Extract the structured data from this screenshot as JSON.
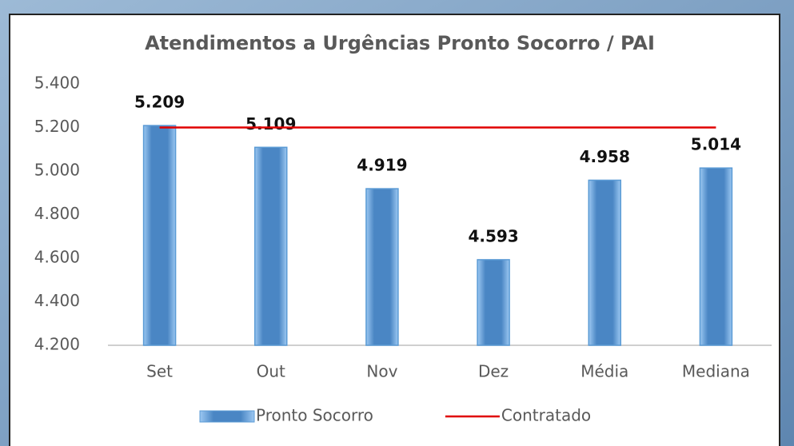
{
  "chart_data": {
    "type": "bar",
    "title": "Atendimentos a Urgências Pronto Socorro / PAI",
    "categories": [
      "Set",
      "Out",
      "Nov",
      "Dez",
      "Média",
      "Mediana"
    ],
    "series": [
      {
        "name": "Pronto Socorro",
        "color": "#5b9bd5",
        "type": "bar",
        "values": [
          5209,
          5109,
          4919,
          4593,
          4958,
          5014
        ],
        "value_labels": [
          "5.209",
          "5.109",
          "4.919",
          "4.593",
          "4.958",
          "5.014"
        ]
      },
      {
        "name": "Contratado",
        "color": "#e00000",
        "type": "line",
        "values": [
          5200,
          5200,
          5200,
          5200,
          5200,
          5200
        ]
      }
    ],
    "ylim": [
      4200,
      5400
    ],
    "yticks": [
      {
        "value": 4200,
        "label": "4.200"
      },
      {
        "value": 4400,
        "label": "4.400"
      },
      {
        "value": 4600,
        "label": "4.600"
      },
      {
        "value": 4800,
        "label": "4.800"
      },
      {
        "value": 5000,
        "label": "5.000"
      },
      {
        "value": 5200,
        "label": "5.200"
      },
      {
        "value": 5400,
        "label": "5.400"
      }
    ],
    "legend": "bottom"
  }
}
